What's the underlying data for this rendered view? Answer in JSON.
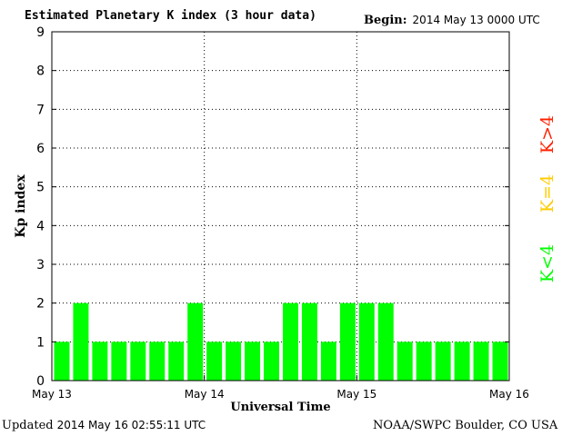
{
  "header": {
    "title": "Estimated Planetary K index (3 hour data)",
    "begin_label": "Begin:",
    "begin_value": "2014 May 13 0000 UTC"
  },
  "footer": {
    "updated_label": "Updated",
    "updated_value": "2014 May 16 02:55:11 UTC",
    "source": "NOAA/SWPC Boulder, CO USA"
  },
  "legend": [
    {
      "label": "K>4",
      "color": "#ff2000"
    },
    {
      "label": "K=4",
      "color": "#ffcc00"
    },
    {
      "label": "K<4",
      "color": "#00ff00"
    }
  ],
  "chart_data": {
    "type": "bar",
    "title": "Estimated Planetary K index (3 hour data)",
    "xlabel": "Universal Time",
    "ylabel": "Kp index",
    "ylim": [
      0,
      9
    ],
    "yticks": [
      0,
      1,
      2,
      3,
      4,
      5,
      6,
      7,
      8,
      9
    ],
    "xticks": [
      "May 13",
      "May 14",
      "May 15",
      "May 16"
    ],
    "grid": true,
    "bar_color": "#00ff00",
    "series": [
      {
        "values": [
          1,
          2,
          1,
          1,
          1,
          1,
          1,
          2,
          1,
          1,
          1,
          1,
          2,
          2,
          1,
          2,
          2,
          2,
          1,
          1,
          1,
          1,
          1,
          1
        ]
      }
    ]
  }
}
